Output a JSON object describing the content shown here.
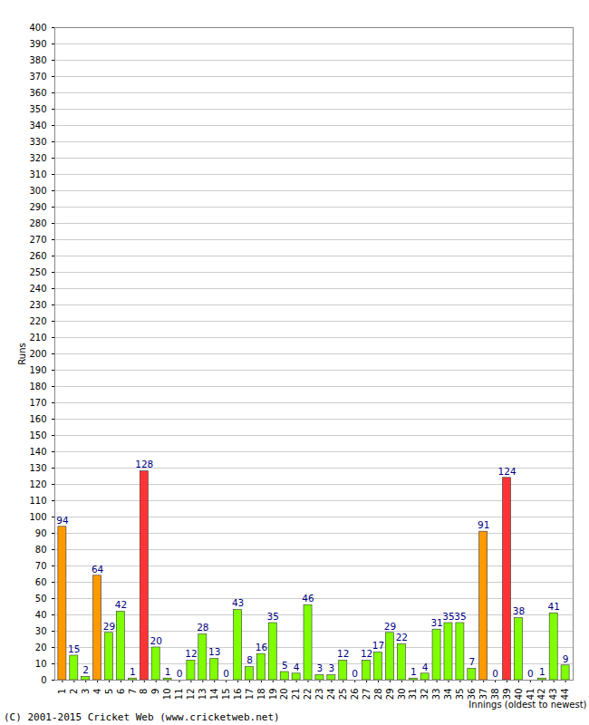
{
  "chart_data": {
    "type": "bar",
    "categories": [
      "1",
      "2",
      "3",
      "4",
      "5",
      "6",
      "7",
      "8",
      "9",
      "10",
      "11",
      "12",
      "13",
      "14",
      "15",
      "16",
      "17",
      "18",
      "19",
      "20",
      "21",
      "22",
      "23",
      "24",
      "25",
      "26",
      "27",
      "28",
      "29",
      "30",
      "31",
      "32",
      "33",
      "34",
      "35",
      "36",
      "37",
      "38",
      "39",
      "40",
      "41",
      "42",
      "43",
      "44"
    ],
    "values": [
      94,
      15,
      2,
      64,
      29,
      42,
      1,
      128,
      20,
      1,
      0,
      12,
      28,
      13,
      0,
      43,
      8,
      16,
      35,
      5,
      4,
      46,
      3,
      3,
      12,
      0,
      12,
      17,
      29,
      22,
      1,
      4,
      31,
      35,
      35,
      7,
      91,
      0,
      124,
      38,
      0,
      1,
      41,
      9
    ],
    "colors": [
      "#ff9900",
      "#80ff00",
      "#80ff00",
      "#ff9900",
      "#80ff00",
      "#80ff00",
      "#80ff00",
      "#ff3333",
      "#80ff00",
      "#80ff00",
      "#80ff00",
      "#80ff00",
      "#80ff00",
      "#80ff00",
      "#80ff00",
      "#80ff00",
      "#80ff00",
      "#80ff00",
      "#80ff00",
      "#80ff00",
      "#80ff00",
      "#80ff00",
      "#80ff00",
      "#80ff00",
      "#80ff00",
      "#80ff00",
      "#80ff00",
      "#80ff00",
      "#80ff00",
      "#80ff00",
      "#80ff00",
      "#80ff00",
      "#80ff00",
      "#80ff00",
      "#80ff00",
      "#80ff00",
      "#ff9900",
      "#80ff00",
      "#ff3333",
      "#80ff00",
      "#80ff00",
      "#80ff00",
      "#80ff00",
      "#80ff00"
    ],
    "x_label": "Innings (oldest to newest)",
    "y_label": "Runs",
    "caption": "(C) 2001-2015 Cricket Web (www.cricketweb.net)",
    "ylim": [
      0,
      400
    ],
    "yticks": [
      0,
      10,
      20,
      30,
      40,
      50,
      60,
      70,
      80,
      90,
      100,
      110,
      120,
      130,
      140,
      150,
      160,
      170,
      180,
      190,
      200,
      210,
      220,
      230,
      240,
      250,
      260,
      270,
      280,
      290,
      300,
      310,
      320,
      330,
      340,
      350,
      360,
      370,
      380,
      390,
      400
    ],
    "grid": true,
    "data_labels": true
  }
}
